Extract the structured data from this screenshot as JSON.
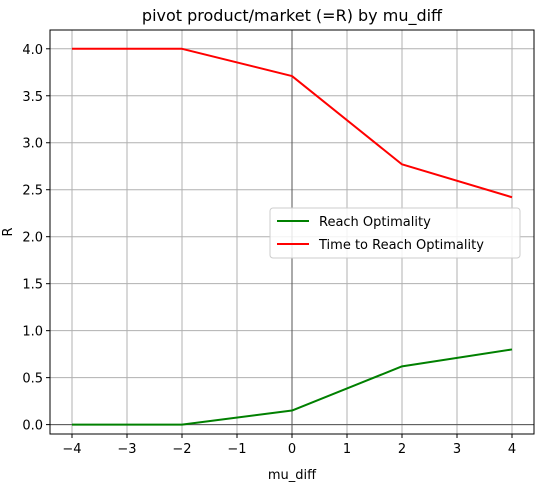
{
  "chart_data": {
    "type": "line",
    "title": "pivot product/market (=R) by mu_diff",
    "xlabel": "mu_diff",
    "ylabel": "R",
    "xlim": [
      -4.4,
      4.4
    ],
    "ylim": [
      -0.1,
      4.2
    ],
    "x_ticks": [
      -4,
      -3,
      -2,
      -1,
      0,
      1,
      2,
      3,
      4
    ],
    "x_tick_labels": [
      "−4",
      "−3",
      "−2",
      "−1",
      "0",
      "1",
      "2",
      "3",
      "4"
    ],
    "y_ticks": [
      0.0,
      0.5,
      1.0,
      1.5,
      2.0,
      2.5,
      3.0,
      3.5,
      4.0
    ],
    "y_tick_labels": [
      "0.0",
      "0.5",
      "1.0",
      "1.5",
      "2.0",
      "2.5",
      "3.0",
      "3.5",
      "4.0"
    ],
    "grid": true,
    "zero_lines": true,
    "legend_position": "center-right",
    "series": [
      {
        "name": "Reach Optimality",
        "color": "#008000",
        "x": [
          -4,
          -2,
          0,
          2,
          4
        ],
        "y": [
          0.0,
          0.0,
          0.15,
          0.62,
          0.8
        ]
      },
      {
        "name": "Time to Reach Optimality",
        "color": "#ff0000",
        "x": [
          -4,
          -2,
          0,
          2,
          4
        ],
        "y": [
          4.0,
          4.0,
          3.71,
          2.77,
          2.42
        ]
      }
    ]
  }
}
